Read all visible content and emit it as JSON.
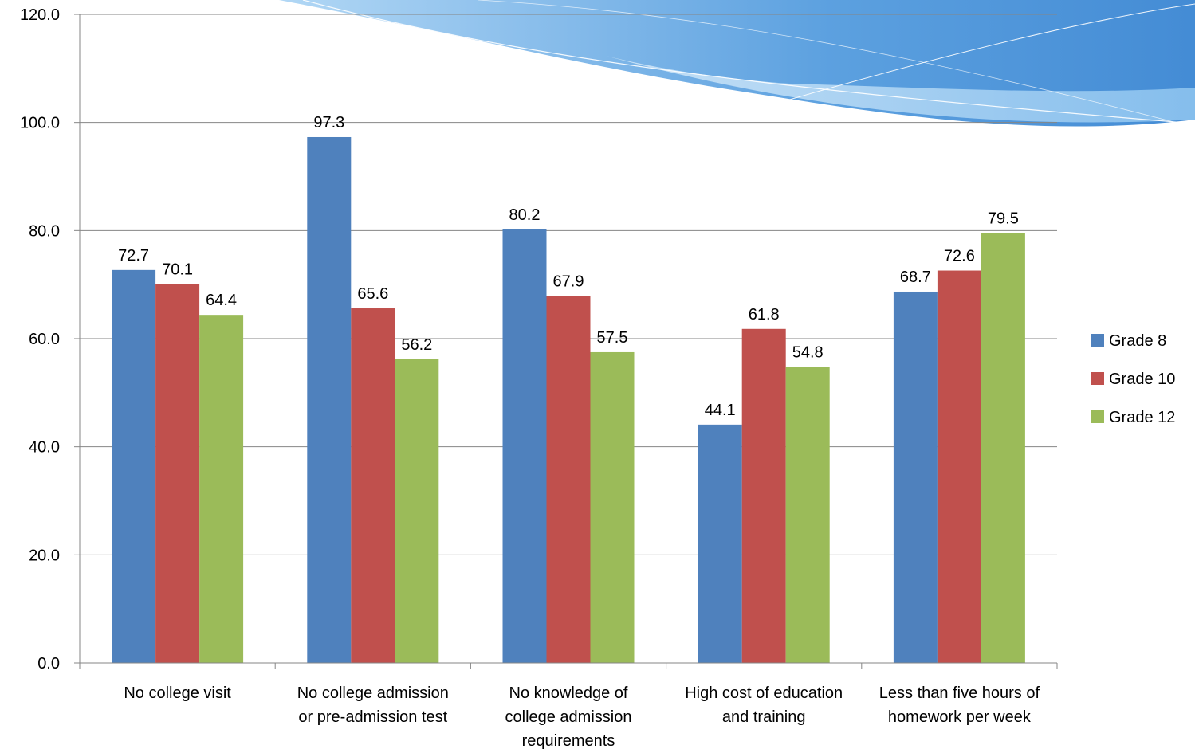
{
  "chart_data": {
    "type": "bar",
    "title": "",
    "xlabel": "",
    "ylabel": "",
    "ylim": [
      0,
      120
    ],
    "yticks": [
      0,
      20,
      40,
      60,
      80,
      100,
      120
    ],
    "ytick_labels": [
      "0.0",
      "20.0",
      "40.0",
      "60.0",
      "80.0",
      "100.0",
      "120.0"
    ],
    "grid": true,
    "legend_position": "right",
    "categories": [
      [
        "No college visit"
      ],
      [
        "No college admission",
        "or pre-admission test"
      ],
      [
        "No knowledge of",
        "college admission",
        "requirements"
      ],
      [
        "High cost of education",
        "and training"
      ],
      [
        "Less than five hours of",
        "homework per week"
      ]
    ],
    "series": [
      {
        "name": "Grade 8",
        "color": "#4f81bd",
        "values": [
          72.7,
          97.3,
          80.2,
          44.1,
          68.7
        ],
        "labels": [
          "72.7",
          "97.3",
          "80.2",
          "44.1",
          "68.7"
        ]
      },
      {
        "name": "Grade 10",
        "color": "#c0504d",
        "values": [
          70.1,
          65.6,
          67.9,
          61.8,
          72.6
        ],
        "labels": [
          "70.1",
          "65.6",
          "67.9",
          "61.8",
          "72.6"
        ]
      },
      {
        "name": "Grade 12",
        "color": "#9bbb59",
        "values": [
          64.4,
          56.2,
          57.5,
          54.8,
          79.5
        ],
        "labels": [
          "64.4",
          "56.2",
          "57.5",
          "54.8",
          "79.5"
        ]
      }
    ]
  },
  "colors": {
    "gridline": "#868686",
    "axis": "#868686",
    "decor_dark": "#3a87d4",
    "decor_light": "#8fc4ee"
  }
}
